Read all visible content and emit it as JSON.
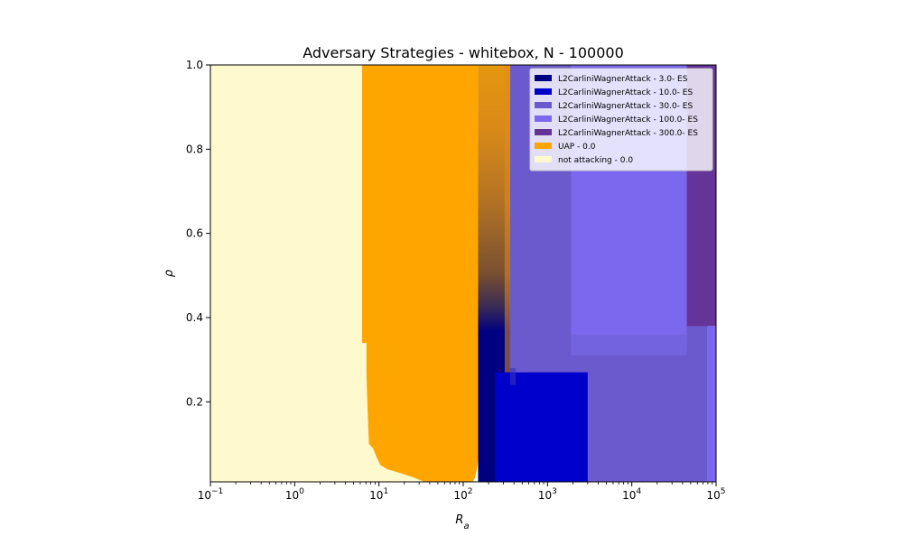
{
  "chart_data": {
    "type": "heatmap",
    "title": "Adversary Strategies - whitebox, N - 100000",
    "xlabel": "R_a",
    "ylabel": "ρ",
    "xscale": "log",
    "xlim": [
      0.1,
      100000
    ],
    "ylim": [
      0.01,
      1.0
    ],
    "x_ticks": [
      {
        "value": 0.1,
        "base": "10",
        "exp": "−1"
      },
      {
        "value": 1,
        "base": "10",
        "exp": "0"
      },
      {
        "value": 10,
        "base": "10",
        "exp": "1"
      },
      {
        "value": 100,
        "base": "10",
        "exp": "2"
      },
      {
        "value": 1000,
        "base": "10",
        "exp": "3"
      },
      {
        "value": 10000,
        "base": "10",
        "exp": "4"
      },
      {
        "value": 100000,
        "base": "10",
        "exp": "5"
      }
    ],
    "y_ticks": [
      {
        "value": 0.2,
        "label": "0.2"
      },
      {
        "value": 0.4,
        "label": "0.4"
      },
      {
        "value": 0.6,
        "label": "0.6"
      },
      {
        "value": 0.8,
        "label": "0.8"
      },
      {
        "value": 1.0,
        "label": "1.0"
      }
    ],
    "legend_position": "top-right",
    "legend": [
      {
        "label": "L2CarliniWagnerAttack - 3.0- ES",
        "color": "#000080"
      },
      {
        "label": "L2CarliniWagnerAttack - 10.0- ES",
        "color": "#0000cd"
      },
      {
        "label": "L2CarliniWagnerAttack - 30.0- ES",
        "color": "#6a5acd"
      },
      {
        "label": "L2CarliniWagnerAttack - 100.0- ES",
        "color": "#7b68ee"
      },
      {
        "label": "L2CarliniWagnerAttack - 300.0- ES",
        "color": "#663399"
      },
      {
        "label": "UAP - 0.0",
        "color": "#ffa500"
      },
      {
        "label": "not attacking - 0.0",
        "color": "#fffacd"
      }
    ],
    "regions": [
      {
        "strategy": "not attacking - 0.0",
        "color": "#fffacd",
        "x": [
          0.1,
          100
        ],
        "y": [
          0.01,
          1.0
        ]
      },
      {
        "strategy": "UAP - 0.0",
        "color": "#ffa500",
        "boundary_x_by_rho": [
          {
            "y": 1.0,
            "x": 6.3
          },
          {
            "y": 0.34,
            "x": 6.3
          },
          {
            "y": 0.34,
            "x": 7.1
          },
          {
            "y": 0.27,
            "x": 7.1
          },
          {
            "y": 0.19,
            "x": 7.3
          },
          {
            "y": 0.1,
            "x": 7.6
          },
          {
            "y": 0.09,
            "x": 8.5
          },
          {
            "y": 0.07,
            "x": 9.3
          },
          {
            "y": 0.05,
            "x": 10.4
          },
          {
            "y": 0.04,
            "x": 12.5
          },
          {
            "y": 0.03,
            "x": 18.5
          },
          {
            "y": 0.02,
            "x": 26
          },
          {
            "y": 0.01,
            "x": 35
          }
        ]
      },
      {
        "strategy": "UAP - 0.0",
        "color": "#ffa500",
        "boundary_x_by_rho": [
          {
            "y": 1.0,
            "x": 150
          },
          {
            "y": 0.06,
            "x": 150
          },
          {
            "y": 0.04,
            "x": 145
          },
          {
            "y": 0.02,
            "x": 138
          },
          {
            "y": 0.01,
            "x": 130
          }
        ]
      },
      {
        "strategy": "UAP - 0.0 to L2CarliniWagnerAttack - 3.0- ES (blend)",
        "color": "#000080",
        "x": [
          150,
          360
        ],
        "y": [
          0.01,
          1.0
        ]
      },
      {
        "strategy": "L2CarliniWagnerAttack - 10.0- ES",
        "color": "#0000cd",
        "x": [
          240,
          3000
        ],
        "y": [
          0.01,
          0.27
        ]
      },
      {
        "strategy": "L2CarliniWagnerAttack - 30.0- ES",
        "color": "#6a5acd",
        "x": [
          360,
          80000
        ],
        "y": [
          0.01,
          1.0
        ]
      },
      {
        "strategy": "L2CarliniWagnerAttack - 100.0- ES",
        "color": "#7b68ee",
        "x": [
          1900,
          45000
        ],
        "y": [
          0.33,
          1.0
        ]
      },
      {
        "strategy": "L2CarliniWagnerAttack - 300.0- ES",
        "color": "#663399",
        "x": [
          45000,
          100000
        ],
        "y": [
          0.38,
          1.0
        ]
      }
    ]
  }
}
